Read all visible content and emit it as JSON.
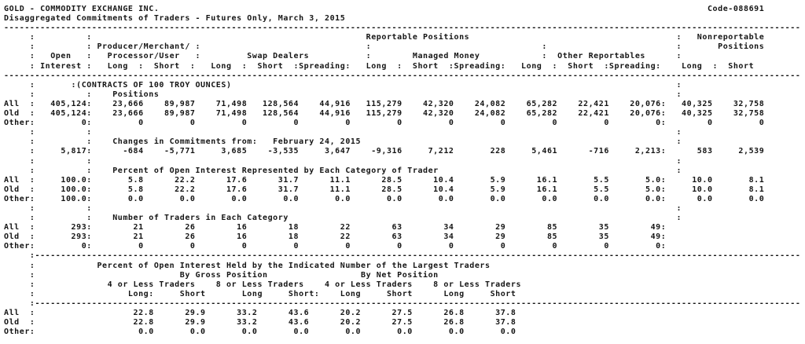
{
  "report": {
    "title": "GOLD - COMMODITY EXCHANGE INC.",
    "code": "Code-088691",
    "subtitle": "Disaggregated Commitments of Traders - Futures Only, March 3, 2015",
    "labels": {
      "reportable": "Reportable Positions",
      "nonreportable": "Nonreportable",
      "nr_positions": "Positions",
      "open": "Open",
      "interest": "Interest",
      "producer_merchant": "Producer/Merchant/",
      "processor_user": "Processor/User",
      "swap_dealers": "Swap Dealers",
      "managed_money": "Managed Money",
      "other_reportables": "Other Reportables",
      "long": "Long",
      "short": "Short",
      "spreading": "Spreading",
      "contracts_note": "(CONTRACTS OF 100 TROY OUNCES)"
    },
    "sections": {
      "positions": {
        "title": "Positions",
        "rows": [
          {
            "label": "All",
            "oi": "405,124",
            "v": [
              "23,666",
              "89,987",
              "71,498",
              "128,564",
              "44,916",
              "115,279",
              "42,320",
              "24,082",
              "65,282",
              "22,421",
              "20,076",
              "40,325",
              "32,758"
            ]
          },
          {
            "label": "Old",
            "oi": "405,124",
            "v": [
              "23,666",
              "89,987",
              "71,498",
              "128,564",
              "44,916",
              "115,279",
              "42,320",
              "24,082",
              "65,282",
              "22,421",
              "20,076",
              "40,325",
              "32,758"
            ]
          },
          {
            "label": "Other",
            "oi": "0",
            "v": [
              "0",
              "0",
              "0",
              "0",
              "0",
              "0",
              "0",
              "0",
              "0",
              "0",
              "0",
              "0",
              "0"
            ]
          }
        ]
      },
      "changes": {
        "title": "Changes in Commitments from:",
        "date": "February 24, 2015",
        "rows": [
          {
            "label": "",
            "oi": "5,817",
            "v": [
              "-684",
              "-5,771",
              "3,685",
              "-3,535",
              "3,647",
              "-9,316",
              "7,212",
              "228",
              "5,461",
              "-716",
              "2,213",
              "583",
              "2,539"
            ]
          }
        ]
      },
      "percent": {
        "title": "Percent of Open Interest Represented by Each Category of Trader",
        "rows": [
          {
            "label": "All",
            "oi": "100.0",
            "v": [
              "5.8",
              "22.2",
              "17.6",
              "31.7",
              "11.1",
              "28.5",
              "10.4",
              "5.9",
              "16.1",
              "5.5",
              "5.0",
              "10.0",
              "8.1"
            ]
          },
          {
            "label": "Old",
            "oi": "100.0",
            "v": [
              "5.8",
              "22.2",
              "17.6",
              "31.7",
              "11.1",
              "28.5",
              "10.4",
              "5.9",
              "16.1",
              "5.5",
              "5.0",
              "10.0",
              "8.1"
            ]
          },
          {
            "label": "Other",
            "oi": "100.0",
            "v": [
              "0.0",
              "0.0",
              "0.0",
              "0.0",
              "0.0",
              "0.0",
              "0.0",
              "0.0",
              "0.0",
              "0.0",
              "0.0",
              "0.0",
              "0.0"
            ]
          }
        ]
      },
      "traders": {
        "title": "Number of Traders in Each Category",
        "rows": [
          {
            "label": "All",
            "oi": "293",
            "v": [
              "21",
              "26",
              "16",
              "18",
              "22",
              "63",
              "34",
              "29",
              "85",
              "35",
              "49",
              "",
              ""
            ]
          },
          {
            "label": "Old",
            "oi": "293",
            "v": [
              "21",
              "26",
              "16",
              "18",
              "22",
              "63",
              "34",
              "29",
              "85",
              "35",
              "49",
              "",
              ""
            ]
          },
          {
            "label": "Other",
            "oi": "0",
            "v": [
              "0",
              "0",
              "0",
              "0",
              "0",
              "0",
              "0",
              "0",
              "0",
              "0",
              "0",
              "",
              ""
            ]
          }
        ]
      },
      "concentration": {
        "title": "Percent of Open Interest Held by the Indicated Number of the Largest Traders",
        "by_gross": "By Gross Position",
        "by_net": "By Net Position",
        "four_or_less": "4 or Less Traders",
        "eight_or_less": "8 or Less Traders",
        "rows": [
          {
            "label": "All",
            "v": [
              "22.8",
              "29.9",
              "33.2",
              "43.6",
              "20.2",
              "27.5",
              "26.8",
              "37.8"
            ]
          },
          {
            "label": "Old",
            "v": [
              "22.8",
              "29.9",
              "33.2",
              "43.6",
              "20.2",
              "27.5",
              "26.8",
              "37.8"
            ]
          },
          {
            "label": "Other",
            "v": [
              "0.0",
              "0.0",
              "0.0",
              "0.0",
              "0.0",
              "0.0",
              "0.0",
              "0.0"
            ]
          }
        ]
      }
    }
  }
}
